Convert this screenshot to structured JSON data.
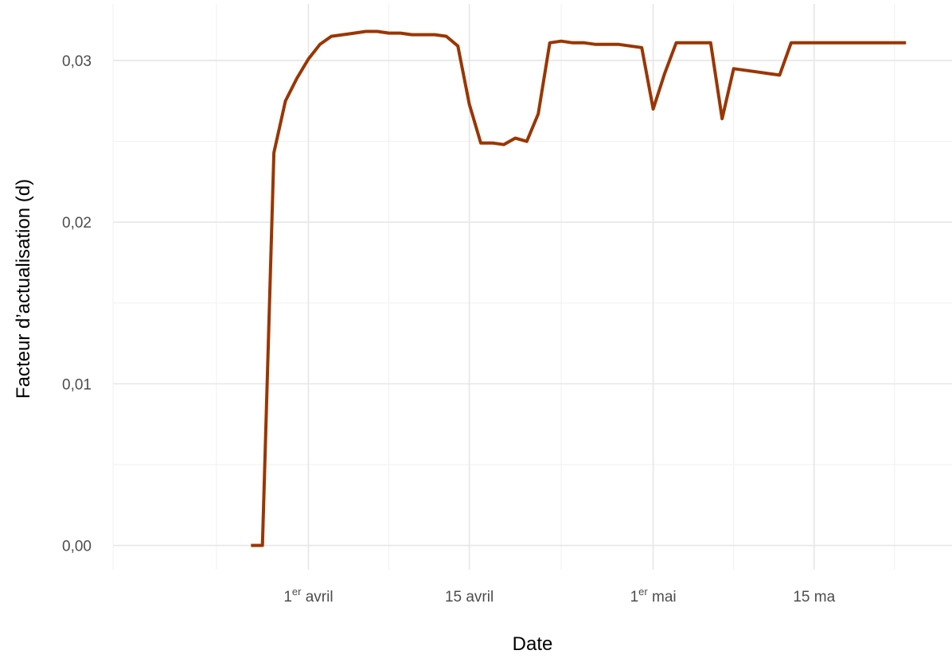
{
  "chart_data": {
    "type": "line",
    "title": "",
    "xlabel": "Date",
    "ylabel": "Facteur d’actualisation (d)",
    "grid": true,
    "legend": "none",
    "line_color": "#9A3600",
    "xlim": [
      "2020-03-15",
      "2020-05-27"
    ],
    "ylim": [
      -0.0015,
      0.0335
    ],
    "yticks": [
      {
        "value": 0.0,
        "label": "0,00"
      },
      {
        "value": 0.01,
        "label": "0,01"
      },
      {
        "value": 0.02,
        "label": "0,02"
      },
      {
        "value": 0.03,
        "label": "0,03"
      }
    ],
    "xticks": [
      {
        "date": "2020-04-01",
        "label": "1",
        "sup": "er",
        "suffix": " avril"
      },
      {
        "date": "2020-04-15",
        "label": "15 avril",
        "sup": "",
        "suffix": ""
      },
      {
        "date": "2020-05-01",
        "label": "1",
        "sup": "er",
        "suffix": " mai"
      },
      {
        "date": "2020-05-15",
        "label": "15 ma",
        "sup": "",
        "suffix": ""
      }
    ],
    "x_minor_dates": [
      "2020-03-15",
      "2020-03-24",
      "2020-04-08",
      "2020-04-23",
      "2020-05-08",
      "2020-05-22"
    ],
    "y_minor_values": [
      0.005,
      0.015,
      0.025
    ],
    "series": [
      {
        "x": [
          "2020-03-27",
          "2020-03-28",
          "2020-03-29",
          "2020-03-30",
          "2020-03-31",
          "2020-04-01",
          "2020-04-02",
          "2020-04-03",
          "2020-04-04",
          "2020-04-05",
          "2020-04-06",
          "2020-04-07",
          "2020-04-08",
          "2020-04-09",
          "2020-04-10",
          "2020-04-11",
          "2020-04-12",
          "2020-04-13",
          "2020-04-14",
          "2020-04-15",
          "2020-04-16",
          "2020-04-17",
          "2020-04-18",
          "2020-04-19",
          "2020-04-20",
          "2020-04-21",
          "2020-04-22",
          "2020-04-23",
          "2020-04-24",
          "2020-04-25",
          "2020-04-26",
          "2020-04-27",
          "2020-04-28",
          "2020-04-29",
          "2020-04-30",
          "2020-05-01",
          "2020-05-02",
          "2020-05-03",
          "2020-05-04",
          "2020-05-05",
          "2020-05-06",
          "2020-05-07",
          "2020-05-08",
          "2020-05-09",
          "2020-05-10",
          "2020-05-11",
          "2020-05-12",
          "2020-05-13",
          "2020-05-14",
          "2020-05-15",
          "2020-05-16",
          "2020-05-17",
          "2020-05-18",
          "2020-05-19",
          "2020-05-20",
          "2020-05-21",
          "2020-05-22",
          "2020-05-23"
        ],
        "y": [
          0.0,
          0.0,
          0.0243,
          0.0275,
          0.0289,
          0.0301,
          0.031,
          0.0315,
          0.0316,
          0.0317,
          0.0318,
          0.0318,
          0.0317,
          0.0317,
          0.0316,
          0.0316,
          0.0316,
          0.0315,
          0.0309,
          0.0273,
          0.0249,
          0.0249,
          0.0248,
          0.0252,
          0.025,
          0.0267,
          0.0311,
          0.0312,
          0.0311,
          0.0311,
          0.031,
          0.031,
          0.031,
          0.0309,
          0.0308,
          0.027,
          0.0292,
          0.0311,
          0.0311,
          0.0311,
          0.0311,
          0.0264,
          0.0295,
          0.0294,
          0.0293,
          0.0292,
          0.0291,
          0.0311,
          0.0311,
          0.0311,
          0.0311,
          0.0311,
          0.0311,
          0.0311,
          0.0311,
          0.0311,
          0.0311,
          0.0311
        ]
      }
    ]
  }
}
